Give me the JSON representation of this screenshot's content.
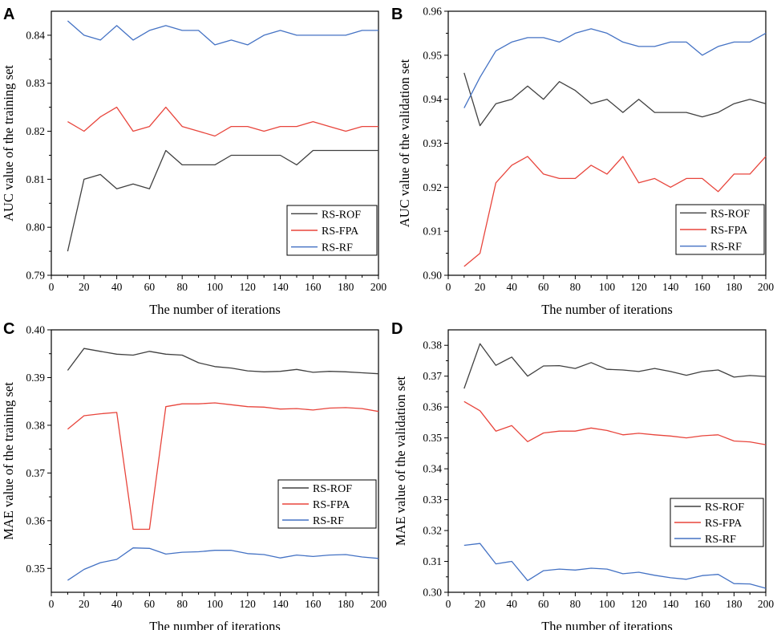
{
  "chart_data": [
    {
      "panel": "A",
      "type": "line",
      "xlabel": "The number of iterations",
      "ylabel": "AUC value of the training set",
      "xlim": [
        0,
        200
      ],
      "ylim": [
        0.79,
        0.845
      ],
      "xticks": [
        0,
        20,
        40,
        60,
        80,
        100,
        120,
        140,
        160,
        180,
        200
      ],
      "xtick_labels": [
        "0",
        "20",
        "40",
        "60",
        "80",
        "100",
        "120",
        "140",
        "160",
        "180",
        "200"
      ],
      "yticks": [
        0.79,
        0.8,
        0.81,
        0.82,
        0.83,
        0.84
      ],
      "ytick_labels": [
        "0.79",
        "0.80",
        "0.81",
        "0.82",
        "0.83",
        "0.84"
      ],
      "legend_position": "lower-right",
      "x": [
        10,
        20,
        30,
        40,
        50,
        60,
        70,
        80,
        90,
        100,
        110,
        120,
        130,
        140,
        150,
        160,
        170,
        180,
        190,
        200
      ],
      "series": [
        {
          "name": "RS-ROF",
          "color": "#404040",
          "values": [
            0.795,
            0.81,
            0.811,
            0.808,
            0.809,
            0.808,
            0.816,
            0.813,
            0.813,
            0.813,
            0.815,
            0.815,
            0.815,
            0.815,
            0.813,
            0.816,
            0.816,
            0.816,
            0.816,
            0.816
          ]
        },
        {
          "name": "RS-FPA",
          "color": "#e8453c",
          "values": [
            0.822,
            0.82,
            0.823,
            0.825,
            0.82,
            0.821,
            0.825,
            0.821,
            0.82,
            0.819,
            0.821,
            0.821,
            0.82,
            0.821,
            0.821,
            0.822,
            0.821,
            0.82,
            0.821,
            0.821
          ]
        },
        {
          "name": "RS-RF",
          "color": "#4472c4",
          "values": [
            0.843,
            0.84,
            0.839,
            0.842,
            0.839,
            0.841,
            0.842,
            0.841,
            0.841,
            0.838,
            0.839,
            0.838,
            0.84,
            0.841,
            0.84,
            0.84,
            0.84,
            0.84,
            0.841,
            0.841
          ]
        }
      ]
    },
    {
      "panel": "B",
      "type": "line",
      "xlabel": "The number of iterations",
      "ylabel": "AUC value of the validation set",
      "xlim": [
        0,
        200
      ],
      "ylim": [
        0.9,
        0.96
      ],
      "xticks": [
        0,
        20,
        40,
        60,
        80,
        100,
        120,
        140,
        160,
        180,
        200
      ],
      "xtick_labels": [
        "0",
        "20",
        "40",
        "60",
        "80",
        "100",
        "120",
        "140",
        "160",
        "180",
        "200"
      ],
      "yticks": [
        0.9,
        0.91,
        0.92,
        0.93,
        0.94,
        0.95,
        0.96
      ],
      "ytick_labels": [
        "0.90",
        "0.91",
        "0.92",
        "0.93",
        "0.94",
        "0.95",
        "0.96"
      ],
      "legend_position": "lower-right",
      "x": [
        10,
        20,
        30,
        40,
        50,
        60,
        70,
        80,
        90,
        100,
        110,
        120,
        130,
        140,
        150,
        160,
        170,
        180,
        190,
        200
      ],
      "series": [
        {
          "name": "RS-ROF",
          "color": "#404040",
          "values": [
            0.946,
            0.934,
            0.939,
            0.94,
            0.943,
            0.94,
            0.944,
            0.942,
            0.939,
            0.94,
            0.937,
            0.94,
            0.937,
            0.937,
            0.937,
            0.936,
            0.937,
            0.939,
            0.94,
            0.939
          ]
        },
        {
          "name": "RS-FPA",
          "color": "#e8453c",
          "values": [
            0.902,
            0.905,
            0.921,
            0.925,
            0.927,
            0.923,
            0.922,
            0.922,
            0.925,
            0.923,
            0.927,
            0.921,
            0.922,
            0.92,
            0.922,
            0.922,
            0.919,
            0.923,
            0.923,
            0.927
          ]
        },
        {
          "name": "RS-RF",
          "color": "#4472c4",
          "values": [
            0.938,
            0.945,
            0.951,
            0.953,
            0.954,
            0.954,
            0.953,
            0.955,
            0.956,
            0.955,
            0.953,
            0.952,
            0.952,
            0.953,
            0.953,
            0.95,
            0.952,
            0.953,
            0.953,
            0.955
          ]
        }
      ]
    },
    {
      "panel": "C",
      "type": "line",
      "xlabel": "The number of iterations",
      "ylabel": "MAE value of the training set",
      "xlim": [
        0,
        200
      ],
      "ylim": [
        0.345,
        0.4
      ],
      "xticks": [
        0,
        20,
        40,
        60,
        80,
        100,
        120,
        140,
        160,
        180,
        200
      ],
      "xtick_labels": [
        "0",
        "20",
        "40",
        "60",
        "80",
        "100",
        "120",
        "140",
        "160",
        "180",
        "200"
      ],
      "yticks": [
        0.35,
        0.36,
        0.37,
        0.38,
        0.39,
        0.4
      ],
      "ytick_labels": [
        "0.35",
        "0.36",
        "0.37",
        "0.38",
        "0.39",
        "0.40"
      ],
      "legend_position": "lower-right",
      "x": [
        10,
        20,
        30,
        40,
        50,
        60,
        70,
        80,
        90,
        100,
        110,
        120,
        130,
        140,
        150,
        160,
        170,
        180,
        190,
        200
      ],
      "series": [
        {
          "name": "RS-ROF",
          "color": "#404040",
          "values": [
            0.3915,
            0.3961,
            0.3955,
            0.3949,
            0.3947,
            0.3955,
            0.3949,
            0.3947,
            0.3931,
            0.3923,
            0.392,
            0.3914,
            0.3912,
            0.3913,
            0.3917,
            0.3911,
            0.3913,
            0.3912,
            0.391,
            0.3908
          ]
        },
        {
          "name": "RS-FPA",
          "color": "#e8453c",
          "values": [
            0.3792,
            0.382,
            0.3824,
            0.3827,
            0.3582,
            0.3582,
            0.3839,
            0.3845,
            0.3845,
            0.3847,
            0.3843,
            0.3839,
            0.3838,
            0.3834,
            0.3835,
            0.3832,
            0.3836,
            0.3837,
            0.3835,
            0.3829
          ]
        },
        {
          "name": "RS-RF",
          "color": "#4472c4",
          "values": [
            0.3475,
            0.3498,
            0.3512,
            0.3519,
            0.3543,
            0.3542,
            0.353,
            0.3534,
            0.3535,
            0.3538,
            0.3538,
            0.3531,
            0.3529,
            0.3522,
            0.3528,
            0.3525,
            0.3528,
            0.3529,
            0.3524,
            0.3521
          ]
        }
      ]
    },
    {
      "panel": "D",
      "type": "line",
      "xlabel": "The number of iterations",
      "ylabel": "MAE value of the validation set",
      "xlim": [
        0,
        200
      ],
      "ylim": [
        0.3,
        0.385
      ],
      "xticks": [
        0,
        20,
        40,
        60,
        80,
        100,
        120,
        140,
        160,
        180,
        200
      ],
      "xtick_labels": [
        "0",
        "20",
        "40",
        "60",
        "80",
        "100",
        "120",
        "140",
        "160",
        "180",
        "200"
      ],
      "yticks": [
        0.3,
        0.31,
        0.32,
        0.33,
        0.34,
        0.35,
        0.36,
        0.37,
        0.38
      ],
      "ytick_labels": [
        "0.30",
        "0.31",
        "0.32",
        "0.33",
        "0.34",
        "0.35",
        "0.36",
        "0.37",
        "0.38"
      ],
      "legend_position": "lower-right",
      "x": [
        10,
        20,
        30,
        40,
        50,
        60,
        70,
        80,
        90,
        100,
        110,
        120,
        130,
        140,
        150,
        160,
        170,
        180,
        190,
        200
      ],
      "series": [
        {
          "name": "RS-ROF",
          "color": "#404040",
          "values": [
            0.366,
            0.3805,
            0.3735,
            0.3762,
            0.37,
            0.3733,
            0.3734,
            0.3725,
            0.3744,
            0.3722,
            0.372,
            0.3715,
            0.3725,
            0.3715,
            0.3703,
            0.3715,
            0.372,
            0.3697,
            0.3702,
            0.3699
          ]
        },
        {
          "name": "RS-FPA",
          "color": "#e8453c",
          "values": [
            0.3618,
            0.3588,
            0.3522,
            0.354,
            0.3488,
            0.3516,
            0.3522,
            0.3522,
            0.3532,
            0.3524,
            0.351,
            0.3515,
            0.351,
            0.3506,
            0.35,
            0.3507,
            0.351,
            0.349,
            0.3487,
            0.3478
          ]
        },
        {
          "name": "RS-RF",
          "color": "#4472c4",
          "values": [
            0.3152,
            0.3158,
            0.3092,
            0.31,
            0.3038,
            0.307,
            0.3075,
            0.3072,
            0.3078,
            0.3075,
            0.306,
            0.3065,
            0.3055,
            0.3047,
            0.3042,
            0.3054,
            0.3058,
            0.3028,
            0.3027,
            0.3013
          ]
        }
      ]
    }
  ]
}
